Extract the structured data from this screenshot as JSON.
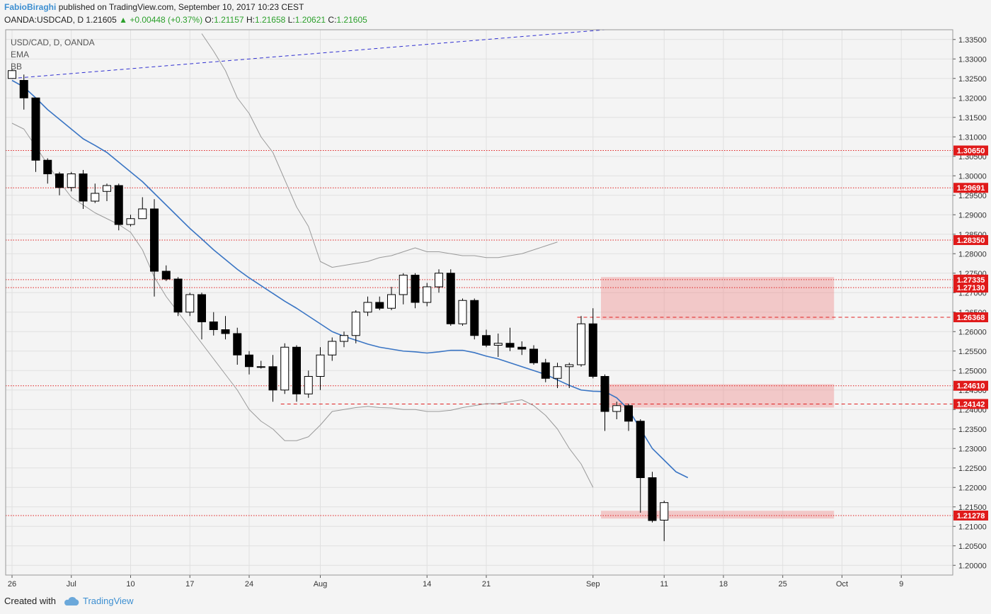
{
  "header": {
    "author": "FabioBiraghi",
    "published": "published on TradingView.com, September 10, 2017 10:23 CEST",
    "symbol": "OANDA:USDCAD, D",
    "last": "1.21605",
    "change": "+0.00448 (+0.37%)",
    "o_label": "O:",
    "o_value": "1.21157",
    "h_label": "H:",
    "h_value": "1.21658",
    "l_label": "L:",
    "l_value": "1.20621",
    "c_label": "C:",
    "c_value": "1.21605"
  },
  "legend": [
    "USD/CAD, D, OANDA",
    "EMA",
    "BB"
  ],
  "footer": {
    "created_with": "Created with",
    "brand": "TradingView"
  },
  "colors": {
    "accent": "#3d8fd1",
    "up_text": "#2ca02c",
    "ema": "#3a75c4",
    "bb": "#9a9a9a",
    "level": "#e02020",
    "zone": "#f08080",
    "trend": "#3030d0",
    "grid": "#e0e0e0"
  },
  "chart_data": {
    "type": "candlestick",
    "symbol": "USD/CAD, D, OANDA",
    "ylim": [
      1.1975,
      1.3375
    ],
    "price_ticks": [
      "1.33500",
      "1.33000",
      "1.32500",
      "1.32000",
      "1.31500",
      "1.31000",
      "1.30500",
      "1.30000",
      "1.29500",
      "1.29000",
      "1.28500",
      "1.28000",
      "1.27500",
      "1.27000",
      "1.26500",
      "1.26000",
      "1.25500",
      "1.25000",
      "1.24500",
      "1.24000",
      "1.23500",
      "1.23000",
      "1.22500",
      "1.22000",
      "1.21500",
      "1.21000",
      "1.20500",
      "1.20000"
    ],
    "time_ticks": [
      {
        "label": "26",
        "bar": 0
      },
      {
        "label": "Jul",
        "bar": 5
      },
      {
        "label": "10",
        "bar": 10
      },
      {
        "label": "17",
        "bar": 15
      },
      {
        "label": "24",
        "bar": 20
      },
      {
        "label": "Aug",
        "bar": 26
      },
      {
        "label": "14",
        "bar": 35
      },
      {
        "label": "21",
        "bar": 40
      },
      {
        "label": "Sep",
        "bar": 49
      },
      {
        "label": "11",
        "bar": 55
      },
      {
        "label": "18",
        "bar": 60
      },
      {
        "label": "25",
        "bar": 65
      },
      {
        "label": "Oct",
        "bar": 70
      },
      {
        "label": "9",
        "bar": 75
      }
    ],
    "candles": [
      [
        1.325,
        1.3275,
        1.325,
        1.327
      ],
      [
        1.3245,
        1.326,
        1.317,
        1.32
      ],
      [
        1.32,
        1.32,
        1.301,
        1.304
      ],
      [
        1.304,
        1.3045,
        1.298,
        1.3005
      ],
      [
        1.3005,
        1.301,
        1.295,
        1.297
      ],
      [
        1.297,
        1.301,
        1.296,
        1.3005
      ],
      [
        1.3005,
        1.3015,
        1.2915,
        1.2935
      ],
      [
        1.2935,
        1.298,
        1.293,
        1.2955
      ],
      [
        1.296,
        1.298,
        1.2935,
        1.2975
      ],
      [
        1.2975,
        1.298,
        1.286,
        1.2875
      ],
      [
        1.2875,
        1.29,
        1.287,
        1.289
      ],
      [
        1.289,
        1.2945,
        1.289,
        1.2915
      ],
      [
        1.2915,
        1.294,
        1.269,
        1.2755
      ],
      [
        1.2755,
        1.277,
        1.273,
        1.2735
      ],
      [
        1.2735,
        1.274,
        1.264,
        1.265
      ],
      [
        1.265,
        1.27,
        1.264,
        1.2695
      ],
      [
        1.2695,
        1.27,
        1.258,
        1.2625
      ],
      [
        1.2625,
        1.265,
        1.259,
        1.2605
      ],
      [
        1.2605,
        1.264,
        1.258,
        1.2595
      ],
      [
        1.2595,
        1.261,
        1.2515,
        1.254
      ],
      [
        1.254,
        1.255,
        1.249,
        1.251
      ],
      [
        1.251,
        1.2525,
        1.2505,
        1.251
      ],
      [
        1.251,
        1.254,
        1.242,
        1.245
      ],
      [
        1.245,
        1.257,
        1.244,
        1.256
      ],
      [
        1.256,
        1.2565,
        1.242,
        1.244
      ],
      [
        1.244,
        1.25,
        1.243,
        1.2485
      ],
      [
        1.2485,
        1.256,
        1.245,
        1.254
      ],
      [
        1.254,
        1.2585,
        1.2525,
        1.2575
      ],
      [
        1.2575,
        1.26,
        1.256,
        1.259
      ],
      [
        1.259,
        1.2655,
        1.257,
        1.265
      ],
      [
        1.265,
        1.269,
        1.264,
        1.2675
      ],
      [
        1.2675,
        1.269,
        1.2655,
        1.266
      ],
      [
        1.266,
        1.2715,
        1.2655,
        1.2695
      ],
      [
        1.2695,
        1.275,
        1.267,
        1.2745
      ],
      [
        1.2745,
        1.275,
        1.266,
        1.2675
      ],
      [
        1.2675,
        1.2725,
        1.2665,
        1.2715
      ],
      [
        1.2715,
        1.276,
        1.27,
        1.275
      ],
      [
        1.275,
        1.276,
        1.2615,
        1.262
      ],
      [
        1.262,
        1.2685,
        1.2615,
        1.268
      ],
      [
        1.268,
        1.2685,
        1.258,
        1.259
      ],
      [
        1.259,
        1.2605,
        1.256,
        1.2565
      ],
      [
        1.2565,
        1.2595,
        1.2535,
        1.257
      ],
      [
        1.257,
        1.261,
        1.255,
        1.256
      ],
      [
        1.256,
        1.2575,
        1.254,
        1.2555
      ],
      [
        1.2555,
        1.2565,
        1.2515,
        1.252
      ],
      [
        1.252,
        1.253,
        1.247,
        1.248
      ],
      [
        1.248,
        1.252,
        1.2455,
        1.251
      ],
      [
        1.251,
        1.252,
        1.2455,
        1.2515
      ],
      [
        1.2515,
        1.264,
        1.251,
        1.262
      ],
      [
        1.262,
        1.266,
        1.248,
        1.2485
      ],
      [
        1.2485,
        1.249,
        1.2345,
        1.2395
      ],
      [
        1.2395,
        1.242,
        1.2375,
        1.241
      ],
      [
        1.241,
        1.2415,
        1.2345,
        1.237
      ],
      [
        1.237,
        1.2375,
        1.2135,
        1.2225
      ],
      [
        1.2225,
        1.224,
        1.211,
        1.2115
      ],
      [
        1.2116,
        1.2166,
        1.2062,
        1.2161
      ]
    ],
    "ema": [
      1.3245,
      1.3228,
      1.32,
      1.317,
      1.3145,
      1.312,
      1.3095,
      1.3078,
      1.306,
      1.3035,
      1.301,
      1.2985,
      1.2955,
      1.2925,
      1.2895,
      1.2865,
      1.2838,
      1.281,
      1.2785,
      1.276,
      1.2738,
      1.2718,
      1.2698,
      1.2678,
      1.266,
      1.264,
      1.262,
      1.26,
      1.2588,
      1.2578,
      1.2568,
      1.256,
      1.2555,
      1.255,
      1.2548,
      1.2545,
      1.2548,
      1.2552,
      1.2552,
      1.2546,
      1.2537,
      1.253,
      1.252,
      1.251,
      1.25,
      1.249,
      1.2476,
      1.2462,
      1.245,
      1.2447,
      1.2446,
      1.243,
      1.24,
      1.235,
      1.23,
      1.227,
      1.224,
      1.2225
    ],
    "bb_upper": [
      null,
      null,
      null,
      null,
      null,
      null,
      null,
      null,
      null,
      null,
      null,
      null,
      null,
      null,
      null,
      null,
      1.3365,
      1.332,
      1.327,
      1.32,
      1.316,
      1.31,
      1.306,
      1.299,
      1.292,
      1.287,
      1.278,
      1.2765,
      1.277,
      1.2775,
      1.278,
      1.279,
      1.2795,
      1.2805,
      1.2815,
      1.2805,
      1.2805,
      1.28,
      1.2795,
      1.2795,
      1.279,
      1.279,
      1.2795,
      1.28,
      1.281,
      1.282,
      1.283
    ],
    "bb_lower": [
      1.3135,
      1.312,
      1.3075,
      1.303,
      1.2985,
      1.2945,
      1.2925,
      1.2905,
      1.289,
      1.2875,
      1.2855,
      1.281,
      1.274,
      1.269,
      1.265,
      1.261,
      1.257,
      1.253,
      1.249,
      1.245,
      1.24,
      1.237,
      1.235,
      1.232,
      1.232,
      1.233,
      1.236,
      1.2395,
      1.24,
      1.2405,
      1.2408,
      1.2405,
      1.2404,
      1.24,
      1.24,
      1.2395,
      1.2395,
      1.2398,
      1.2405,
      1.241,
      1.2415,
      1.2415,
      1.242,
      1.2425,
      1.241,
      1.2385,
      1.235,
      1.23,
      1.226,
      1.22
    ],
    "levels": [
      {
        "price": 1.3065,
        "label": "1.30650",
        "style": "dotted"
      },
      {
        "price": 1.29691,
        "label": "1.29691",
        "style": "dotted"
      },
      {
        "price": 1.2835,
        "label": "1.28350",
        "style": "dotted"
      },
      {
        "price": 1.27335,
        "label": "1.27335",
        "style": "dotted"
      },
      {
        "price": 1.2713,
        "label": "1.27130",
        "style": "dotted"
      },
      {
        "price": 1.26368,
        "label": "1.26368",
        "style": "dashed",
        "from_bar": 48
      },
      {
        "price": 1.2461,
        "label": "1.24610",
        "style": "dotted"
      },
      {
        "price": 1.24142,
        "label": "1.24142",
        "style": "dashed",
        "from_bar": 23
      },
      {
        "price": 1.21278,
        "label": "1.21278",
        "style": "dotted"
      }
    ],
    "zones": [
      {
        "from_bar": 50,
        "to_bar": 69,
        "top": 1.274,
        "bottom": 1.263
      },
      {
        "from_bar": 50,
        "to_bar": 69,
        "top": 1.2465,
        "bottom": 1.2405
      },
      {
        "from_bar": 50,
        "to_bar": 69,
        "top": 1.214,
        "bottom": 1.212
      }
    ],
    "trendline": {
      "from_bar": 0,
      "from_price": 1.325,
      "to_bar": 50,
      "to_price": 1.3375
    }
  }
}
